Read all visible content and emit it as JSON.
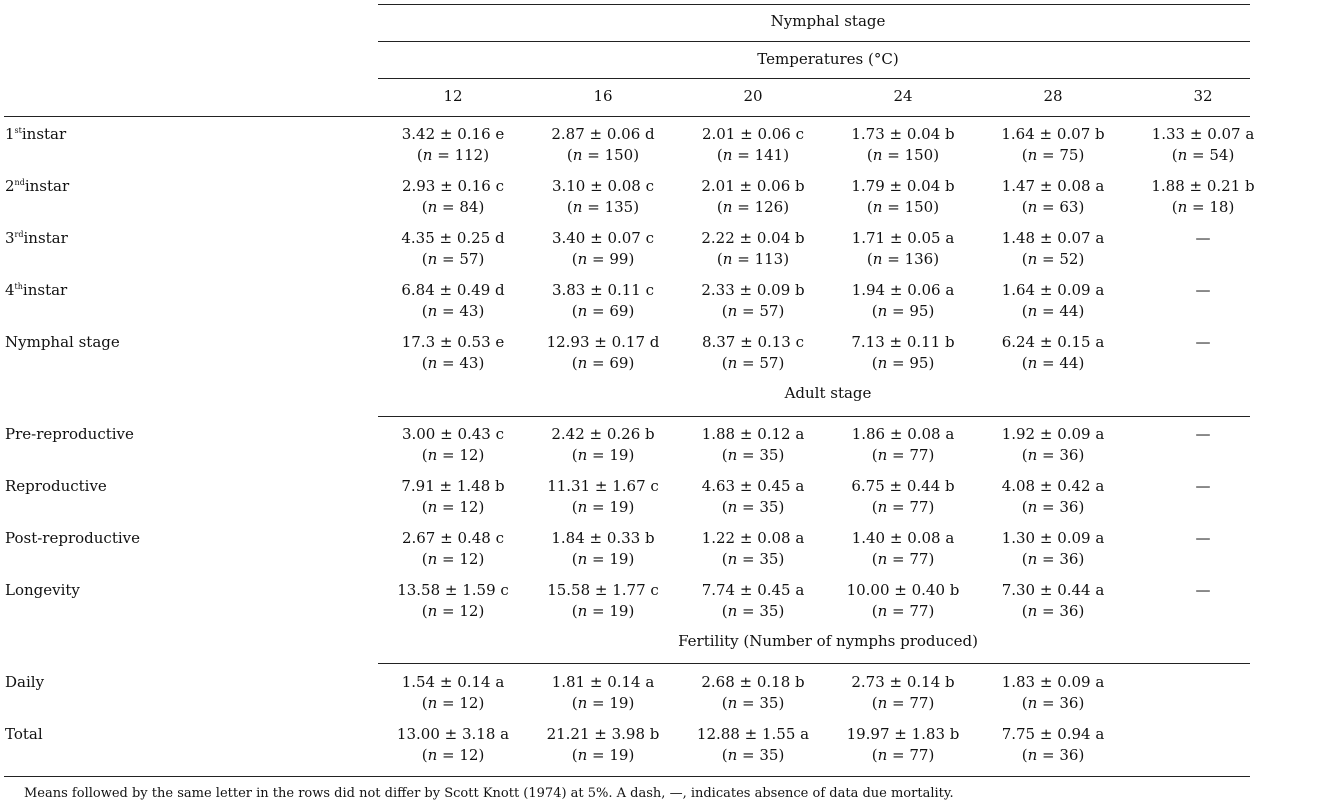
{
  "headers": {
    "stage": "Nymphal stage",
    "temperatures": "Temperatures (°C)",
    "temps": [
      "12",
      "16",
      "20",
      "24",
      "28",
      "32"
    ]
  },
  "sections": [
    {
      "title": "",
      "rows": [
        {
          "label": "instar",
          "sup": "st",
          "num": "1",
          "cells": [
            {
              "v": "3.42 ± 0.16 e",
              "n": "112"
            },
            {
              "v": "2.87 ± 0.06 d",
              "n": "150"
            },
            {
              "v": "2.01 ± 0.06 c",
              "n": "141"
            },
            {
              "v": "1.73 ± 0.04 b",
              "n": "150"
            },
            {
              "v": "1.64 ± 0.07 b",
              "n": "75"
            },
            {
              "v": "1.33 ± 0.07 a",
              "n": "54"
            }
          ]
        },
        {
          "label": "instar",
          "sup": "nd",
          "num": "2",
          "cells": [
            {
              "v": "2.93 ± 0.16 c",
              "n": "84"
            },
            {
              "v": "3.10 ± 0.08 c",
              "n": "135"
            },
            {
              "v": "2.01 ± 0.06 b",
              "n": "126"
            },
            {
              "v": "1.79 ± 0.04 b",
              "n": "150"
            },
            {
              "v": "1.47 ± 0.08 a",
              "n": "63"
            },
            {
              "v": "1.88 ± 0.21 b",
              "n": "18"
            }
          ]
        },
        {
          "label": "instar",
          "sup": "rd",
          "num": "3",
          "cells": [
            {
              "v": "4.35 ± 0.25 d",
              "n": "57"
            },
            {
              "v": "3.40 ± 0.07 c",
              "n": "99"
            },
            {
              "v": "2.22 ± 0.04 b",
              "n": "113"
            },
            {
              "v": "1.71 ± 0.05 a",
              "n": "136"
            },
            {
              "v": "1.48 ± 0.07 a",
              "n": "52"
            },
            {
              "dash": "—"
            }
          ]
        },
        {
          "label": "instar",
          "sup": "th",
          "num": "4",
          "cells": [
            {
              "v": "6.84 ± 0.49 d",
              "n": "43"
            },
            {
              "v": "3.83 ± 0.11 c",
              "n": "69"
            },
            {
              "v": "2.33 ± 0.09 b",
              "n": "57"
            },
            {
              "v": "1.94 ± 0.06 a",
              "n": "95"
            },
            {
              "v": "1.64 ± 0.09 a",
              "n": "44"
            },
            {
              "dash": "—"
            }
          ]
        },
        {
          "label": "Nymphal stage",
          "cells": [
            {
              "v": "17.3 ± 0.53 e",
              "n": "43"
            },
            {
              "v": "12.93 ± 0.17 d",
              "n": "69"
            },
            {
              "v": "8.37 ± 0.13 c",
              "n": "57"
            },
            {
              "v": "7.13 ± 0.11 b",
              "n": "95"
            },
            {
              "v": "6.24 ± 0.15 a",
              "n": "44"
            },
            {
              "dash": "—"
            }
          ]
        }
      ]
    },
    {
      "title": "Adult stage",
      "rows": [
        {
          "label": "Pre-reproductive",
          "cells": [
            {
              "v": "3.00 ± 0.43 c",
              "n": "12"
            },
            {
              "v": "2.42 ± 0.26 b",
              "n": "19"
            },
            {
              "v": "1.88 ± 0.12 a",
              "n": "35"
            },
            {
              "v": "1.86 ± 0.08 a",
              "n": "77"
            },
            {
              "v": "1.92 ± 0.09 a",
              "n": "36"
            },
            {
              "dash": "—"
            }
          ]
        },
        {
          "label": "Reproductive",
          "cells": [
            {
              "v": "7.91 ± 1.48 b",
              "n": "12"
            },
            {
              "v": "11.31 ± 1.67 c",
              "n": "19"
            },
            {
              "v": "4.63 ± 0.45 a",
              "n": "35"
            },
            {
              "v": "6.75 ± 0.44 b",
              "n": "77"
            },
            {
              "v": "4.08 ± 0.42 a",
              "n": "36"
            },
            {
              "dash": "—"
            }
          ]
        },
        {
          "label": "Post-reproductive",
          "cells": [
            {
              "v": "2.67 ± 0.48 c",
              "n": "12"
            },
            {
              "v": "1.84 ± 0.33 b",
              "n": "19"
            },
            {
              "v": "1.22 ± 0.08 a",
              "n": "35"
            },
            {
              "v": "1.40 ± 0.08 a",
              "n": "77"
            },
            {
              "v": "1.30 ± 0.09 a",
              "n": "36"
            },
            {
              "dash": "—"
            }
          ]
        },
        {
          "label": "Longevity",
          "cells": [
            {
              "v": "13.58 ± 1.59 c",
              "n": "12"
            },
            {
              "v": "15.58 ± 1.77 c",
              "n": "19"
            },
            {
              "v": "7.74 ± 0.45 a",
              "n": "35"
            },
            {
              "v": "10.00 ± 0.40 b",
              "n": "77"
            },
            {
              "v": "7.30 ± 0.44 a",
              "n": "36"
            },
            {
              "dash": "—"
            }
          ]
        }
      ]
    },
    {
      "title": "Fertility (Number of nymphs produced)",
      "rows": [
        {
          "label": "Daily",
          "cells": [
            {
              "v": "1.54 ± 0.14 a",
              "n": "12"
            },
            {
              "v": "1.81 ± 0.14 a",
              "n": "19"
            },
            {
              "v": "2.68 ± 0.18 b",
              "n": "35"
            },
            {
              "v": "2.73 ± 0.14 b",
              "n": "77"
            },
            {
              "v": "1.83 ± 0.09 a",
              "n": "36"
            },
            {}
          ]
        },
        {
          "label": "Total",
          "cells": [
            {
              "v": "13.00 ± 3.18 a",
              "n": "12"
            },
            {
              "v": "21.21 ± 3.98 b",
              "n": "19"
            },
            {
              "v": "12.88 ± 1.55 a",
              "n": "35"
            },
            {
              "v": "19.97 ± 1.83 b",
              "n": "77"
            },
            {
              "v": "7.75 ± 0.94 a",
              "n": "36"
            },
            {}
          ]
        }
      ]
    }
  ],
  "nlabel": {
    "open": "(",
    "n": "n",
    "eq": " = ",
    "close": ")"
  },
  "footnote": "Means followed by the same letter in the rows did not differ by Scott Knott (1974) at 5%. A dash, —, indicates absence of data due mortality."
}
